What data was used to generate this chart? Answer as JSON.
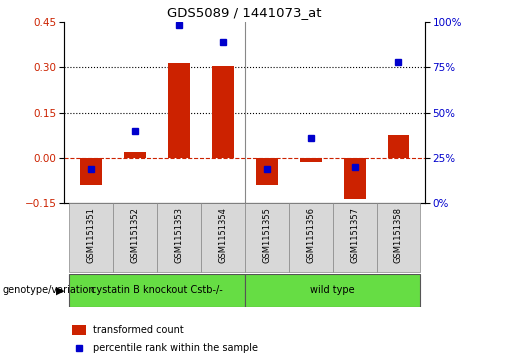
{
  "title": "GDS5089 / 1441073_at",
  "samples": [
    "GSM1151351",
    "GSM1151352",
    "GSM1151353",
    "GSM1151354",
    "GSM1151355",
    "GSM1151356",
    "GSM1151357",
    "GSM1151358"
  ],
  "transformed_count": [
    -0.09,
    0.02,
    0.315,
    0.305,
    -0.09,
    -0.015,
    -0.135,
    0.075
  ],
  "percentile_rank": [
    19,
    40,
    98,
    89,
    19,
    36,
    20,
    78
  ],
  "bar_color": "#cc2200",
  "dot_color": "#0000cc",
  "ylim_left": [
    -0.15,
    0.45
  ],
  "ylim_right": [
    0,
    100
  ],
  "yticks_left": [
    -0.15,
    0.0,
    0.15,
    0.3,
    0.45
  ],
  "yticks_right": [
    0,
    25,
    50,
    75,
    100
  ],
  "hlines": [
    0.0,
    0.15,
    0.3
  ],
  "hline_styles": [
    "dashed",
    "dotted",
    "dotted"
  ],
  "hline_colors": [
    "#cc2200",
    "#000000",
    "#000000"
  ],
  "group1_label": "cystatin B knockout Cstb-/-",
  "group2_label": "wild type",
  "group_label_prefix": "genotype/variation",
  "group_color": "#66dd44",
  "left_tick_color": "#cc2200",
  "right_tick_color": "#0000cc",
  "legend_tc_label": "transformed count",
  "legend_pr_label": "percentile rank within the sample",
  "bar_width": 0.5,
  "sample_box_color": "#d8d8d8",
  "plot_bg": "#ffffff",
  "fig_bg": "#ffffff",
  "n_group1": 4,
  "n_group2": 4
}
